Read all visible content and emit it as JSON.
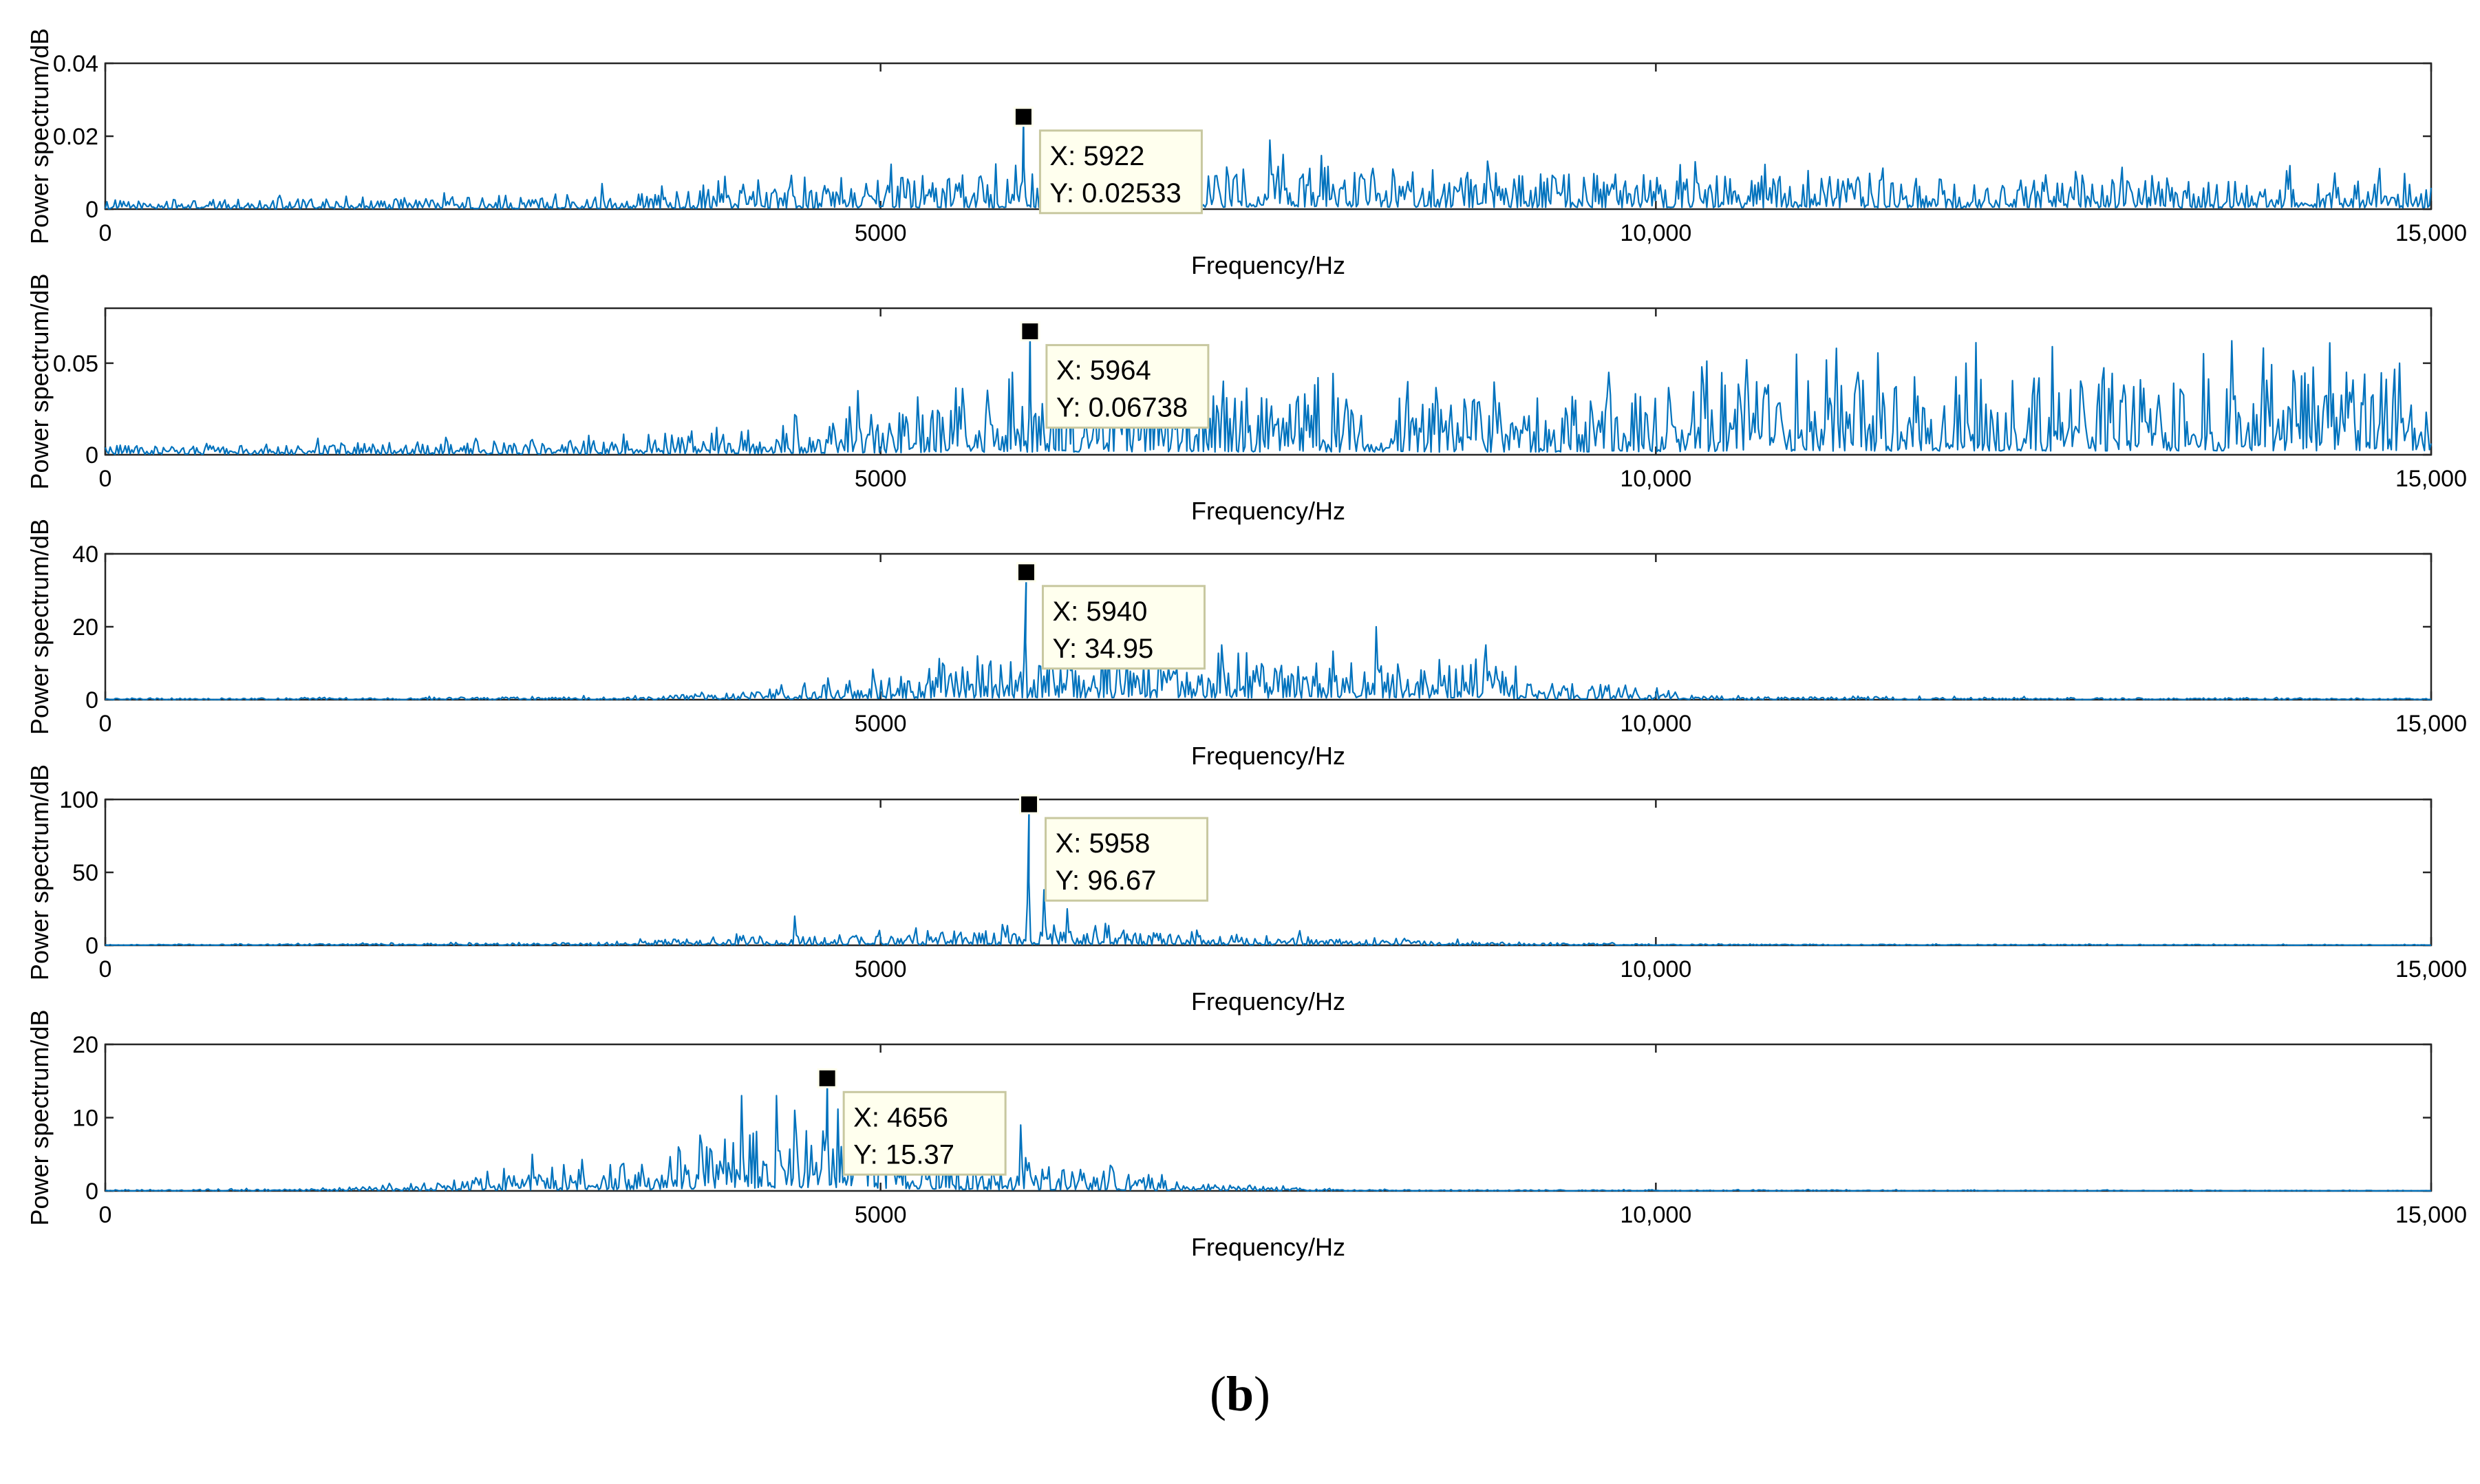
{
  "caption": {
    "open": "(",
    "letter": "b",
    "close": ")"
  },
  "colors": {
    "series": "#0072BD",
    "axis": "#262626",
    "tooltip_bg": "#FFFFEE",
    "tooltip_border": "#C8C8A0"
  },
  "chart_data": [
    {
      "type": "line",
      "title": "",
      "xlabel": "Frequency/Hz",
      "ylabel": "Power spectrum/dB",
      "xlim": [
        0,
        15000
      ],
      "ylim": [
        0,
        0.04
      ],
      "x_ticks": [
        0,
        5000,
        10000,
        15000
      ],
      "x_tick_labels": [
        "0",
        "5000",
        "10,000",
        "15,000"
      ],
      "y_ticks": [
        0,
        0.02,
        0.04
      ],
      "y_tick_labels": [
        "0",
        "0.02",
        "0.04"
      ],
      "peak": {
        "x": 5922,
        "y": 0.02533
      },
      "datatip": {
        "x_text": "X: 5922",
        "y_text": "Y: 0.02533"
      },
      "profile": [
        {
          "f": 0,
          "amp": 0.0015
        },
        {
          "f": 3000,
          "amp": 0.002
        },
        {
          "f": 4500,
          "amp": 0.004
        },
        {
          "f": 5500,
          "amp": 0.006
        },
        {
          "f": 7000,
          "amp": 0.006
        },
        {
          "f": 7500,
          "amp": 0.008
        },
        {
          "f": 9000,
          "amp": 0.006
        },
        {
          "f": 12000,
          "amp": 0.005
        },
        {
          "f": 15000,
          "amp": 0.005
        }
      ],
      "bumps": [
        {
          "f": 7000,
          "y": 0.012
        },
        {
          "f": 7600,
          "y": 0.015
        },
        {
          "f": 8300,
          "y": 0.011
        },
        {
          "f": 10250,
          "y": 0.013
        },
        {
          "f": 3200,
          "y": 0.007
        },
        {
          "f": 4000,
          "y": 0.009
        }
      ]
    },
    {
      "type": "line",
      "title": "",
      "xlabel": "Frequency/Hz",
      "ylabel": "Power spectrum/dB",
      "xlim": [
        0,
        15000
      ],
      "ylim": [
        0,
        0.08
      ],
      "x_ticks": [
        0,
        5000,
        10000,
        15000
      ],
      "x_tick_labels": [
        "0",
        "5000",
        "10,000",
        "15,000"
      ],
      "y_ticks": [
        0,
        0.05
      ],
      "y_tick_labels": [
        "0",
        "0.05"
      ],
      "peak": {
        "x": 5964,
        "y": 0.06738
      },
      "datatip": {
        "x_text": "X: 5964",
        "y_text": "Y: 0.06738"
      },
      "profile": [
        {
          "f": 0,
          "amp": 0.003
        },
        {
          "f": 3500,
          "amp": 0.005
        },
        {
          "f": 4800,
          "amp": 0.012
        },
        {
          "f": 5800,
          "amp": 0.018
        },
        {
          "f": 6500,
          "amp": 0.02
        },
        {
          "f": 9000,
          "amp": 0.018
        },
        {
          "f": 11000,
          "amp": 0.025
        },
        {
          "f": 15000,
          "amp": 0.028
        }
      ],
      "bumps": [
        {
          "f": 4850,
          "y": 0.035
        },
        {
          "f": 5850,
          "y": 0.045
        },
        {
          "f": 10300,
          "y": 0.048
        },
        {
          "f": 11300,
          "y": 0.045
        },
        {
          "f": 12000,
          "y": 0.05
        },
        {
          "f": 14800,
          "y": 0.05
        }
      ]
    },
    {
      "type": "line",
      "title": "",
      "xlabel": "Frequency/Hz",
      "ylabel": "Power spectrum/dB",
      "xlim": [
        0,
        15000
      ],
      "ylim": [
        0,
        40
      ],
      "x_ticks": [
        0,
        5000,
        10000,
        15000
      ],
      "x_tick_labels": [
        "0",
        "5000",
        "10,000",
        "15,000"
      ],
      "y_ticks": [
        0,
        20,
        40
      ],
      "y_tick_labels": [
        "0",
        "20",
        "40"
      ],
      "peak": {
        "x": 5940,
        "y": 34.95
      },
      "datatip": {
        "x_text": "X: 5940",
        "y_text": "Y: 34.95"
      },
      "profile": [
        {
          "f": 0,
          "amp": 0.2
        },
        {
          "f": 3500,
          "amp": 0.5
        },
        {
          "f": 4500,
          "amp": 2
        },
        {
          "f": 5500,
          "amp": 6
        },
        {
          "f": 6200,
          "amp": 7
        },
        {
          "f": 7500,
          "amp": 6
        },
        {
          "f": 8800,
          "amp": 6
        },
        {
          "f": 9300,
          "amp": 3
        },
        {
          "f": 10500,
          "amp": 0.5
        },
        {
          "f": 15000,
          "amp": 0.2
        }
      ],
      "bumps": [
        {
          "f": 5400,
          "y": 10
        },
        {
          "f": 6100,
          "y": 28
        },
        {
          "f": 7200,
          "y": 15
        },
        {
          "f": 8200,
          "y": 20
        },
        {
          "f": 8900,
          "y": 15
        },
        {
          "f": 8600,
          "y": 11
        }
      ]
    },
    {
      "type": "line",
      "title": "",
      "xlabel": "Frequency/Hz",
      "ylabel": "Power spectrum/dB",
      "xlim": [
        0,
        15000
      ],
      "ylim": [
        0,
        100
      ],
      "x_ticks": [
        0,
        5000,
        10000,
        15000
      ],
      "x_tick_labels": [
        "0",
        "5000",
        "10,000",
        "15,000"
      ],
      "y_ticks": [
        0,
        50,
        100
      ],
      "y_tick_labels": [
        "0",
        "50",
        "100"
      ],
      "peak": {
        "x": 5958,
        "y": 96.67
      },
      "datatip": {
        "x_text": "X: 5958",
        "y_text": "Y: 96.67"
      },
      "profile": [
        {
          "f": 0,
          "amp": 0.3
        },
        {
          "f": 3000,
          "amp": 1
        },
        {
          "f": 4300,
          "amp": 4
        },
        {
          "f": 5500,
          "amp": 6
        },
        {
          "f": 6500,
          "amp": 6
        },
        {
          "f": 7500,
          "amp": 3
        },
        {
          "f": 9000,
          "amp": 1.5
        },
        {
          "f": 10000,
          "amp": 0.5
        },
        {
          "f": 15000,
          "amp": 0.3
        }
      ],
      "bumps": [
        {
          "f": 4450,
          "y": 20
        },
        {
          "f": 6050,
          "y": 38
        },
        {
          "f": 6200,
          "y": 25
        },
        {
          "f": 6450,
          "y": 15
        },
        {
          "f": 7700,
          "y": 10
        },
        {
          "f": 5300,
          "y": 10
        }
      ]
    },
    {
      "type": "line",
      "title": "",
      "xlabel": "Frequency/Hz",
      "ylabel": "Power spectrum/dB",
      "xlim": [
        0,
        15000
      ],
      "ylim": [
        0,
        20
      ],
      "x_ticks": [
        0,
        5000,
        10000,
        15000
      ],
      "x_tick_labels": [
        "0",
        "5000",
        "10,000",
        "15,000"
      ],
      "y_ticks": [
        0,
        10,
        20
      ],
      "y_tick_labels": [
        "0",
        "10",
        "20"
      ],
      "peak": {
        "x": 4656,
        "y": 15.37
      },
      "datatip": {
        "x_text": "X: 4656",
        "y_text": "Y: 15.37"
      },
      "profile": [
        {
          "f": 0,
          "amp": 0.1
        },
        {
          "f": 1500,
          "amp": 0.2
        },
        {
          "f": 2500,
          "amp": 1.2
        },
        {
          "f": 3500,
          "amp": 2.5
        },
        {
          "f": 4200,
          "amp": 5
        },
        {
          "f": 4800,
          "amp": 6
        },
        {
          "f": 5300,
          "amp": 3
        },
        {
          "f": 5800,
          "amp": 2
        },
        {
          "f": 6300,
          "amp": 2
        },
        {
          "f": 7000,
          "amp": 0.6
        },
        {
          "f": 8000,
          "amp": 0.1
        },
        {
          "f": 15000,
          "amp": 0.05
        }
      ],
      "bumps": [
        {
          "f": 4100,
          "y": 13
        },
        {
          "f": 4330,
          "y": 13
        },
        {
          "f": 4450,
          "y": 11
        },
        {
          "f": 5900,
          "y": 9
        },
        {
          "f": 5600,
          "y": 5
        },
        {
          "f": 2750,
          "y": 5
        },
        {
          "f": 3700,
          "y": 6
        }
      ]
    }
  ]
}
